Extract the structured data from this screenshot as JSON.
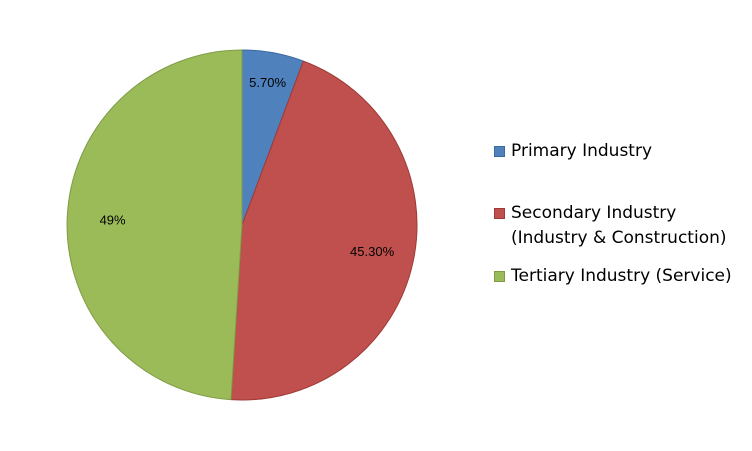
{
  "chart_data": {
    "type": "pie",
    "title": "",
    "categories": [
      "Primary Industry",
      "Secondary Industry (Industry & Construction)",
      "Tertiary Industry (Service)"
    ],
    "values": [
      5.7,
      45.3,
      49
    ],
    "data_labels": [
      "5.70%",
      "45.30%",
      "49%"
    ],
    "colors": [
      "#4F81BD",
      "#C0504D",
      "#9BBB59"
    ],
    "border_colors": [
      "#3B6A9E",
      "#9E3A37",
      "#7E9C45"
    ],
    "start_angle": "12 o'clock",
    "direction": "clockwise",
    "legend_placement": "right"
  },
  "legend": {
    "items": [
      {
        "line1": "Primary Industry",
        "line2": "",
        "color": "#4F81BD"
      },
      {
        "line1": "Secondary Industry",
        "line2": "(Industry & Construction)",
        "color": "#C0504D"
      },
      {
        "line1": "Tertiary Industry (Service)",
        "line2": "",
        "color": "#9BBB59"
      }
    ]
  }
}
